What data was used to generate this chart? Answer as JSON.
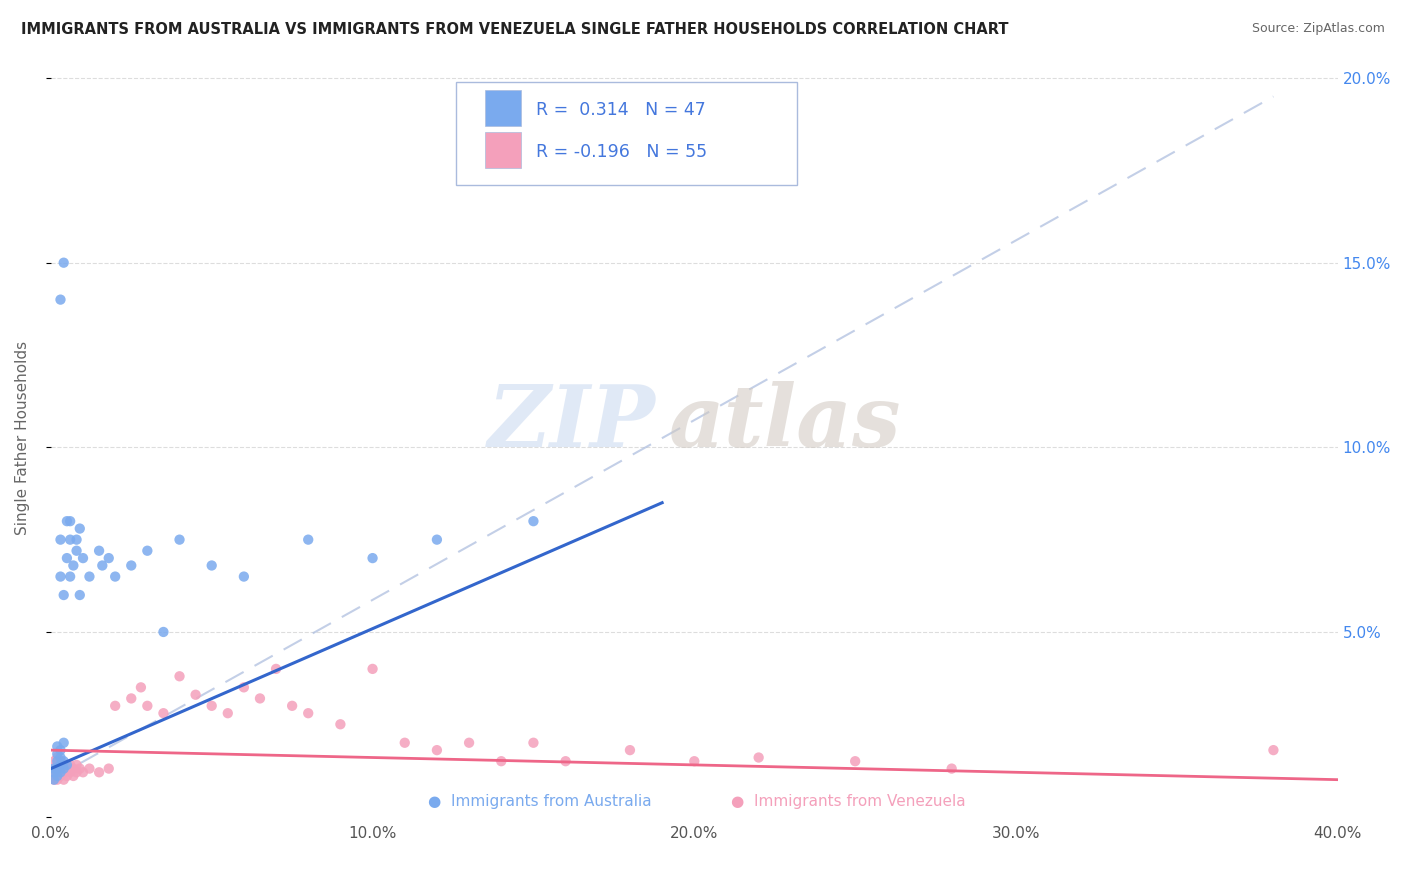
{
  "title": "IMMIGRANTS FROM AUSTRALIA VS IMMIGRANTS FROM VENEZUELA SINGLE FATHER HOUSEHOLDS CORRELATION CHART",
  "source": "Source: ZipAtlas.com",
  "ylabel": "Single Father Households",
  "xlim": [
    0.0,
    0.4
  ],
  "ylim": [
    0.0,
    0.205
  ],
  "yticks": [
    0.0,
    0.05,
    0.1,
    0.15,
    0.2
  ],
  "ytick_labels_right": [
    "",
    "5.0%",
    "10.0%",
    "15.0%",
    "20.0%"
  ],
  "xticks": [
    0.0,
    0.1,
    0.2,
    0.3,
    0.4
  ],
  "xtick_labels": [
    "0.0%",
    "10.0%",
    "20.0%",
    "30.0%",
    "40.0%"
  ],
  "australia_color": "#7aaaee",
  "venezuela_color": "#f4a0bb",
  "australia_line_color": "#3366cc",
  "venezuela_line_color": "#ee6688",
  "dashed_line_color": "#aabbdd",
  "australia_R": 0.314,
  "australia_N": 47,
  "venezuela_R": -0.196,
  "venezuela_N": 55,
  "watermark_zip": "ZIP",
  "watermark_atlas": "atlas",
  "legend_text_color": "#4477dd",
  "australia_scatter": [
    [
      0.001,
      0.01
    ],
    [
      0.001,
      0.012
    ],
    [
      0.001,
      0.013
    ],
    [
      0.002,
      0.011
    ],
    [
      0.002,
      0.013
    ],
    [
      0.002,
      0.015
    ],
    [
      0.002,
      0.017
    ],
    [
      0.002,
      0.019
    ],
    [
      0.003,
      0.012
    ],
    [
      0.003,
      0.014
    ],
    [
      0.003,
      0.016
    ],
    [
      0.003,
      0.018
    ],
    [
      0.003,
      0.065
    ],
    [
      0.003,
      0.075
    ],
    [
      0.004,
      0.013
    ],
    [
      0.004,
      0.015
    ],
    [
      0.004,
      0.02
    ],
    [
      0.004,
      0.06
    ],
    [
      0.005,
      0.014
    ],
    [
      0.005,
      0.07
    ],
    [
      0.006,
      0.065
    ],
    [
      0.006,
      0.075
    ],
    [
      0.007,
      0.068
    ],
    [
      0.008,
      0.072
    ],
    [
      0.009,
      0.06
    ],
    [
      0.003,
      0.14
    ],
    [
      0.004,
      0.15
    ],
    [
      0.005,
      0.08
    ],
    [
      0.006,
      0.08
    ],
    [
      0.008,
      0.075
    ],
    [
      0.009,
      0.078
    ],
    [
      0.01,
      0.07
    ],
    [
      0.012,
      0.065
    ],
    [
      0.015,
      0.072
    ],
    [
      0.016,
      0.068
    ],
    [
      0.018,
      0.07
    ],
    [
      0.02,
      0.065
    ],
    [
      0.025,
      0.068
    ],
    [
      0.03,
      0.072
    ],
    [
      0.035,
      0.05
    ],
    [
      0.04,
      0.075
    ],
    [
      0.05,
      0.068
    ],
    [
      0.06,
      0.065
    ],
    [
      0.08,
      0.075
    ],
    [
      0.1,
      0.07
    ],
    [
      0.12,
      0.075
    ],
    [
      0.15,
      0.08
    ]
  ],
  "venezuela_scatter": [
    [
      0.001,
      0.01
    ],
    [
      0.001,
      0.011
    ],
    [
      0.001,
      0.013
    ],
    [
      0.001,
      0.015
    ],
    [
      0.002,
      0.01
    ],
    [
      0.002,
      0.012
    ],
    [
      0.002,
      0.014
    ],
    [
      0.002,
      0.016
    ],
    [
      0.003,
      0.011
    ],
    [
      0.003,
      0.013
    ],
    [
      0.003,
      0.015
    ],
    [
      0.004,
      0.01
    ],
    [
      0.004,
      0.012
    ],
    [
      0.004,
      0.014
    ],
    [
      0.005,
      0.011
    ],
    [
      0.005,
      0.013
    ],
    [
      0.006,
      0.012
    ],
    [
      0.006,
      0.014
    ],
    [
      0.007,
      0.011
    ],
    [
      0.007,
      0.013
    ],
    [
      0.008,
      0.012
    ],
    [
      0.008,
      0.014
    ],
    [
      0.009,
      0.013
    ],
    [
      0.01,
      0.012
    ],
    [
      0.012,
      0.013
    ],
    [
      0.015,
      0.012
    ],
    [
      0.018,
      0.013
    ],
    [
      0.02,
      0.03
    ],
    [
      0.025,
      0.032
    ],
    [
      0.028,
      0.035
    ],
    [
      0.03,
      0.03
    ],
    [
      0.035,
      0.028
    ],
    [
      0.04,
      0.038
    ],
    [
      0.045,
      0.033
    ],
    [
      0.05,
      0.03
    ],
    [
      0.055,
      0.028
    ],
    [
      0.06,
      0.035
    ],
    [
      0.065,
      0.032
    ],
    [
      0.07,
      0.04
    ],
    [
      0.075,
      0.03
    ],
    [
      0.08,
      0.028
    ],
    [
      0.09,
      0.025
    ],
    [
      0.1,
      0.04
    ],
    [
      0.11,
      0.02
    ],
    [
      0.12,
      0.018
    ],
    [
      0.13,
      0.02
    ],
    [
      0.14,
      0.015
    ],
    [
      0.15,
      0.02
    ],
    [
      0.16,
      0.015
    ],
    [
      0.18,
      0.018
    ],
    [
      0.2,
      0.015
    ],
    [
      0.22,
      0.016
    ],
    [
      0.25,
      0.015
    ],
    [
      0.28,
      0.013
    ],
    [
      0.38,
      0.018
    ]
  ],
  "aus_regline": [
    [
      0.0,
      0.013
    ],
    [
      0.19,
      0.085
    ]
  ],
  "ven_regline": [
    [
      0.0,
      0.018
    ],
    [
      0.4,
      0.01
    ]
  ],
  "dashed_line": [
    [
      0.0,
      0.01
    ],
    [
      0.38,
      0.195
    ]
  ]
}
